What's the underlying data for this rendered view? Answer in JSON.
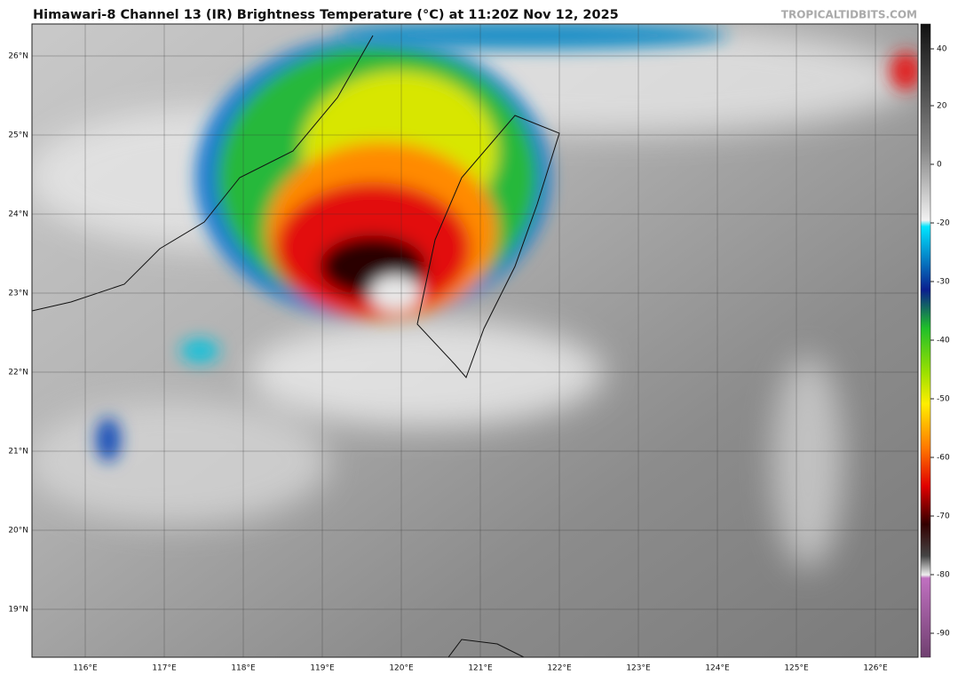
{
  "header": {
    "title": "Himawari-8 Channel 13 (IR) Brightness Temperature (°C) at 11:20Z Nov 12, 2025",
    "credit": "TROPICALTIDBITS.COM"
  },
  "map": {
    "lat_labels": [
      "26°N",
      "25°N",
      "24°N",
      "23°N",
      "22°N",
      "21°N",
      "20°N",
      "19°N"
    ],
    "lon_labels": [
      "116°E",
      "117°E",
      "118°E",
      "119°E",
      "120°E",
      "121°E",
      "122°E",
      "123°E",
      "124°E",
      "125°E",
      "126°E"
    ]
  },
  "colorbar": {
    "ticks": [
      "40",
      "20",
      "0",
      "-20",
      "-30",
      "-40",
      "-50",
      "-60",
      "-70",
      "-80",
      "-90"
    ]
  }
}
